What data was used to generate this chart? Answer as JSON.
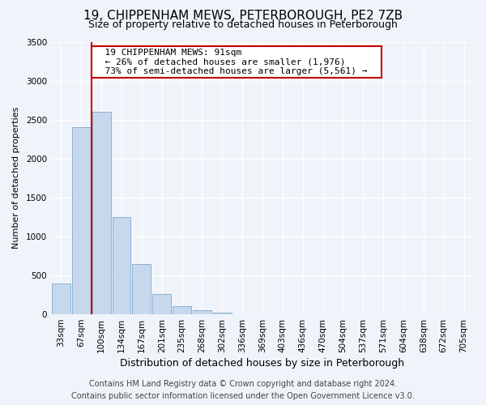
{
  "title": "19, CHIPPENHAM MEWS, PETERBOROUGH, PE2 7ZB",
  "subtitle": "Size of property relative to detached houses in Peterborough",
  "xlabel": "Distribution of detached houses by size in Peterborough",
  "ylabel": "Number of detached properties",
  "bar_labels": [
    "33sqm",
    "67sqm",
    "100sqm",
    "134sqm",
    "167sqm",
    "201sqm",
    "235sqm",
    "268sqm",
    "302sqm",
    "336sqm",
    "369sqm",
    "403sqm",
    "436sqm",
    "470sqm",
    "504sqm",
    "537sqm",
    "571sqm",
    "604sqm",
    "638sqm",
    "672sqm",
    "705sqm"
  ],
  "bar_values": [
    400,
    2400,
    2600,
    1250,
    650,
    260,
    100,
    50,
    25,
    0,
    0,
    0,
    0,
    0,
    0,
    0,
    0,
    0,
    0,
    0,
    0
  ],
  "bar_color": "#c8d8ec",
  "bar_edge_color": "#8ab0d0",
  "line_color": "#cc0000",
  "annotation_text": "  19 CHIPPENHAM MEWS: 91sqm  \n  ← 26% of detached houses are smaller (1,976)  \n  73% of semi-detached houses are larger (5,561) →  ",
  "annotation_box_color": "#ffffff",
  "annotation_box_edge_color": "#cc0000",
  "ylim": [
    0,
    3500
  ],
  "yticks": [
    0,
    500,
    1000,
    1500,
    2000,
    2500,
    3000,
    3500
  ],
  "footer_line1": "Contains HM Land Registry data © Crown copyright and database right 2024.",
  "footer_line2": "Contains public sector information licensed under the Open Government Licence v3.0.",
  "background_color": "#f0f4fa",
  "plot_background_color": "#f0f4fa",
  "title_fontsize": 11,
  "subtitle_fontsize": 9,
  "xlabel_fontsize": 9,
  "ylabel_fontsize": 8,
  "tick_fontsize": 7.5,
  "annotation_fontsize": 8,
  "footer_fontsize": 7
}
